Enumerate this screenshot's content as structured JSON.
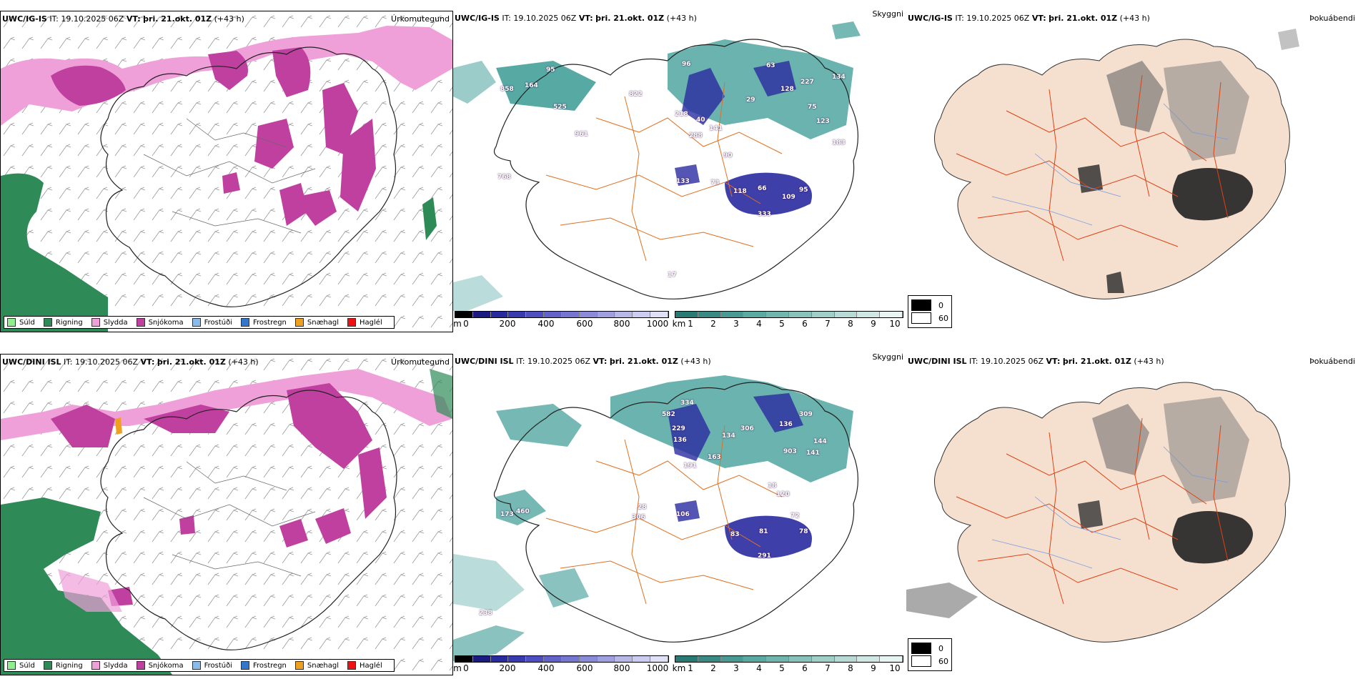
{
  "colors": {
    "drizzle": "#90ee90",
    "rain": "#2e8b57",
    "sleet": "#f0a0d8",
    "snow": "#c040a0",
    "freezing_drizzle": "#88bbee",
    "freezing_rain": "#3377cc",
    "snow_pellets": "#f0a020",
    "hail": "#ee1111",
    "cloud_teal": "#3a9a94",
    "cloud_blue": "#2a2aa0",
    "land_fog": "#f5e0d0",
    "roads": "#e07020"
  },
  "rows": [
    {
      "id": "ig",
      "precip": {
        "model": "UWC/IG-IS",
        "it_label": "IT:",
        "it": "19.10.2025 06Z",
        "vt_label": "VT:",
        "vt": "þri. 21.okt. 01Z",
        "lead": "(+43 h)",
        "title": "Úrkomutegund"
      },
      "cloud": {
        "model": "UWC/IG-IS",
        "it_label": "IT:",
        "it": "19.10.2025 06Z",
        "vt_label": "VT:",
        "vt": "þri. 21.okt. 01Z",
        "lead": "(+43 h)",
        "title": "Skyggni"
      },
      "fog": {
        "model": "UWC/IG-IS",
        "it_label": "IT:",
        "it": "19.10.2025 06Z",
        "vt_label": "VT:",
        "vt": "þri. 21.okt. 01Z",
        "lead": "(+43 h)",
        "title": "Þokuábendi"
      },
      "labels": [
        "858",
        "164",
        "525",
        "961",
        "95",
        "768",
        "822",
        "96",
        "218",
        "40",
        "141",
        "288",
        "90",
        "133",
        "73",
        "118",
        "66",
        "109",
        "95",
        "333",
        "63",
        "128",
        "227",
        "134",
        "29",
        "75",
        "123",
        "183",
        "17"
      ]
    },
    {
      "id": "dini",
      "precip": {
        "model": "UWC/DINI ISL",
        "it_label": "IT:",
        "it": "19.10.2025 06Z",
        "vt_label": "VT:",
        "vt": "þri. 21.okt. 01Z",
        "lead": "(+43 h)",
        "title": "Úrkomutegund"
      },
      "cloud": {
        "model": "UWC/DINI ISL",
        "it_label": "IT:",
        "it": "19.10.2025 06Z",
        "vt_label": "VT:",
        "vt": "þri. 21.okt. 01Z",
        "lead": "(+43 h)",
        "title": "Skyggni"
      },
      "fog": {
        "model": "UWC/DINI ISL",
        "it_label": "IT:",
        "it": "19.10.2025 06Z",
        "vt_label": "VT:",
        "vt": "þri. 21.okt. 01Z",
        "lead": "(+43 h)",
        "title": "Þokuábendi"
      },
      "labels": [
        "334",
        "582",
        "229",
        "136",
        "191",
        "163",
        "134",
        "306",
        "136",
        "309",
        "903",
        "141",
        "144",
        "120",
        "106",
        "28",
        "306",
        "173",
        "460",
        "83",
        "81",
        "78",
        "291",
        "238",
        "72",
        "18"
      ]
    }
  ],
  "legend": [
    "Súld",
    "Rigning",
    "Slydda",
    "Snjókoma",
    "Frostúði",
    "Frostregn",
    "Snæhagl",
    "Haglél"
  ],
  "cbar_m": {
    "unit": "m",
    "ticks": [
      "0",
      "200",
      "400",
      "600",
      "800",
      "1000"
    ]
  },
  "cbar_km": {
    "unit": "km",
    "ticks": [
      "1",
      "2",
      "3",
      "4",
      "5",
      "6",
      "7",
      "8",
      "9",
      "10"
    ]
  },
  "fog_legend": [
    "0",
    "60"
  ]
}
